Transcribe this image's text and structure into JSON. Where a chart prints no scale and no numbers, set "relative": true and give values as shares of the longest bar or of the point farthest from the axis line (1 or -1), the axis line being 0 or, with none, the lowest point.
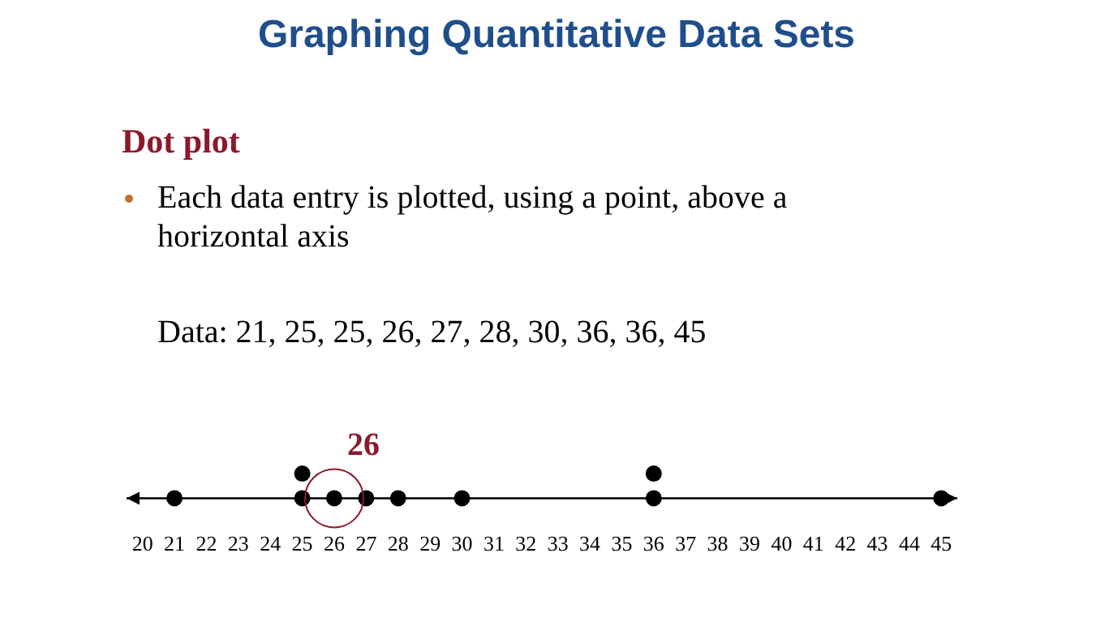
{
  "chart_data": {
    "type": "scatter",
    "title": "Graphing Quantitative Data Sets",
    "subtitle": "Dot plot",
    "annotations": [
      "Each data entry is plotted, using a point, above a horizontal axis",
      "Data: 21, 25, 25, 26, 27, 28, 30, 36, 36, 45",
      {
        "text": "26",
        "x": 26,
        "y": 0
      }
    ],
    "relative": true,
    "x": [
      21,
      25,
      25,
      26,
      27,
      28,
      30,
      36,
      36,
      45
    ],
    "series": [
      {
        "color": "#000000",
        "values": [
          0,
          0,
          1,
          0,
          0,
          0,
          0,
          0,
          1,
          0
        ]
      }
    ],
    "xlim": [
      19.5,
      45.5
    ],
    "xticks": [
      20,
      21,
      22,
      23,
      24,
      25,
      26,
      27,
      28,
      29,
      30,
      31,
      32,
      33,
      34,
      35,
      36,
      37,
      38,
      39,
      40,
      41,
      42,
      43,
      44,
      45
    ],
    "grid": false,
    "legend": false,
    "marker": "circle"
  }
}
